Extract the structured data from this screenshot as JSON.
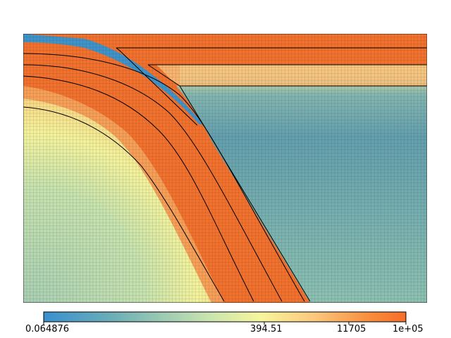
{
  "colorbar": {
    "labels": [
      "0.064876",
      "394.51",
      "11705",
      "1e+05"
    ],
    "colors": [
      "#3a8fce",
      "#6aaab9",
      "#a8d0b2",
      "#f6f59a",
      "#fbc77a",
      "#f88a3b",
      "#f76f2c"
    ]
  },
  "field_colors": {
    "high": "#f26f2c",
    "low": "#3f93c9",
    "background": "#a9cfb3",
    "outer_region": "#5f9fae",
    "mid": "#f5f39b",
    "grid_line": "#1b1b1b",
    "contour": "#000000"
  }
}
